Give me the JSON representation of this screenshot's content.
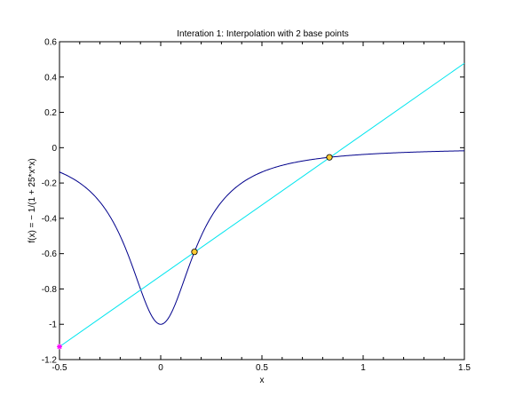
{
  "chart_data": {
    "type": "line",
    "title": "Interation 1: Interpolation with 2 base points",
    "xlabel": "x",
    "ylabel": "f(x) = − 1/(1 + 25*x*x)",
    "xlim": [
      -0.5,
      1.5
    ],
    "ylim": [
      -1.2,
      0.6
    ],
    "xticks": [
      -0.5,
      0,
      0.5,
      1,
      1.5
    ],
    "xtick_labels": [
      "-0.5",
      "0",
      "0.5",
      "1",
      "1.5"
    ],
    "yticks": [
      -1.2,
      -1,
      -0.8,
      -0.6,
      -0.4,
      -0.2,
      0,
      0.2,
      0.4,
      0.6
    ],
    "ytick_labels": [
      "-1.2",
      "-1",
      "-0.8",
      "-0.6",
      "-0.4",
      "-0.2",
      "0",
      "0.2",
      "0.4",
      "0.6"
    ],
    "grid": false,
    "series": [
      {
        "color": "#00008b",
        "function": "-1/(1+25*x*x)",
        "x": [
          -0.5,
          -0.4,
          -0.3,
          -0.2,
          -0.1,
          0,
          0.1,
          0.2,
          0.3,
          0.4,
          0.5,
          0.6,
          0.7,
          0.8,
          0.9,
          1.0,
          1.1,
          1.2,
          1.3,
          1.4,
          1.5
        ],
        "y": [
          -0.138,
          -0.2,
          -0.308,
          -0.5,
          -0.8,
          -1.0,
          -0.8,
          -0.5,
          -0.308,
          -0.2,
          -0.138,
          -0.1,
          -0.075,
          -0.059,
          -0.047,
          -0.038,
          -0.032,
          -0.027,
          -0.023,
          -0.02,
          -0.017
        ]
      },
      {
        "color": "#00e5ee",
        "x": [
          -0.5,
          1.5
        ],
        "y": [
          -1.127,
          0.478
        ]
      }
    ],
    "base_points": {
      "color": "#ffcc33",
      "x": [
        0.1667,
        0.8333
      ],
      "y": [
        -0.59,
        -0.0545
      ]
    },
    "marker": {
      "color": "#ff00ff",
      "x": -0.5,
      "y": -1.127
    }
  }
}
